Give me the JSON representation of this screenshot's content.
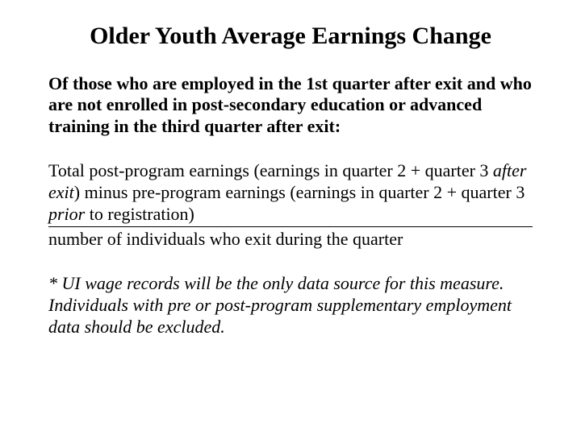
{
  "title": "Older Youth Average Earnings Change",
  "intro_bold": "Of those who are employed in the 1st quarter after exit and who are not enrolled in post-secondary education or advanced training in the third quarter after exit:",
  "numerator_a": "Total post-program earnings (earnings in quarter 2 + quarter 3 ",
  "numerator_b_i": "after exit",
  "numerator_c": ") minus pre-program earnings (earnings in quarter 2 + quarter 3 ",
  "numerator_d_i": "prior",
  "numerator_e": " to registration)",
  "denominator": "number of individuals who exit during the quarter",
  "note": "* UI wage records will be the only data source for this measure.  Individuals with pre or post-program supplementary employment data should be excluded.",
  "colors": {
    "background": "#ffffff",
    "text": "#000000",
    "rule": "#000000"
  },
  "fontsizes": {
    "title": 30,
    "body": 22
  }
}
